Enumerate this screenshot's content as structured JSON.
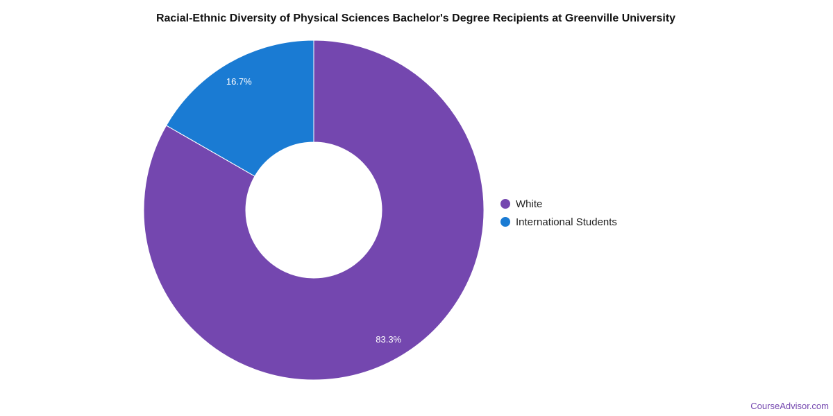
{
  "chart_data": {
    "type": "pie",
    "variant": "donut",
    "title": "Racial-Ethnic Diversity of Physical Sciences Bachelor's Degree Recipients at Greenville University",
    "slices": [
      {
        "name": "White",
        "value": 83.3,
        "label": "83.3%",
        "color": "#7447AF"
      },
      {
        "name": "International Students",
        "value": 16.7,
        "label": "16.7%",
        "color": "#1A7BD3"
      }
    ],
    "legend_position": "right"
  },
  "credit": "CourseAdvisor.com"
}
